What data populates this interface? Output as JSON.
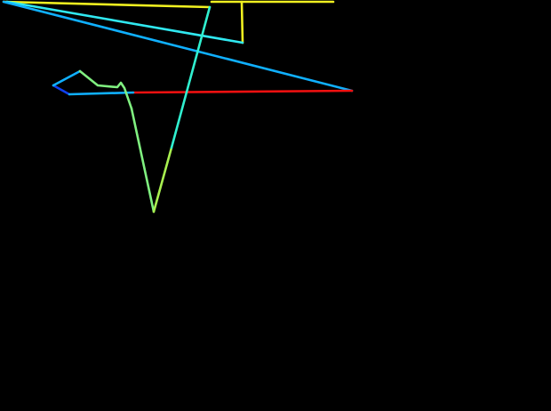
{
  "canvas": {
    "background": "#000000",
    "stroke_colors": {
      "yellow": "#f0f020",
      "cyan": "#30e8f0",
      "sky_blue": "#10b0ff",
      "blue": "#1040f0",
      "red": "#f01010",
      "light_green": "#80f080",
      "green": "#a8f050",
      "aqua": "#30f0d0"
    }
  }
}
